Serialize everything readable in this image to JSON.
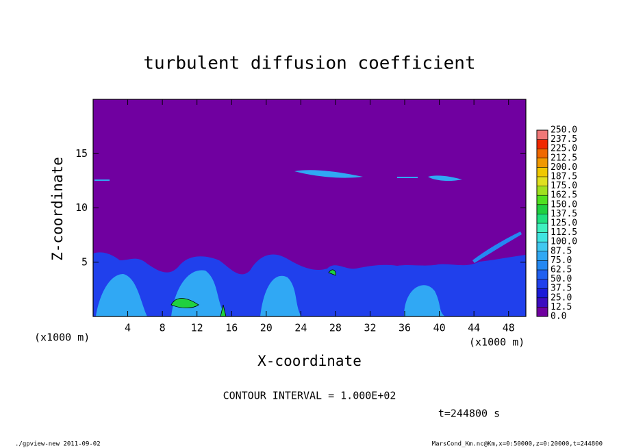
{
  "chart_data": {
    "type": "contour",
    "title": "turbulent diffusion coefficient",
    "xlabel": "X-coordinate",
    "ylabel": "Z-coordinate",
    "x_unit": "(x1000 m)",
    "y_unit": "(x1000 m)",
    "xlim": [
      0,
      50
    ],
    "ylim": [
      0,
      20
    ],
    "xticks": [
      4,
      8,
      12,
      16,
      20,
      24,
      28,
      32,
      36,
      40,
      44,
      48
    ],
    "yticks": [
      5,
      10,
      15
    ],
    "levels": [
      {
        "value": 0,
        "label": "0.0"
      },
      {
        "value": 12.5,
        "label": "12.5"
      },
      {
        "value": 25,
        "label": "25.0"
      },
      {
        "value": 37.5,
        "label": "37.5"
      },
      {
        "value": 50,
        "label": "50.0"
      },
      {
        "value": 62.5,
        "label": "62.5"
      },
      {
        "value": 75,
        "label": "75.0"
      },
      {
        "value": 87.5,
        "label": "87.5"
      },
      {
        "value": 100,
        "label": "100.0"
      },
      {
        "value": 112.5,
        "label": "112.5"
      },
      {
        "value": 125,
        "label": "125.0"
      },
      {
        "value": 137.5,
        "label": "137.5"
      },
      {
        "value": 150,
        "label": "150.0"
      },
      {
        "value": 162.5,
        "label": "162.5"
      },
      {
        "value": 175,
        "label": "175.0"
      },
      {
        "value": 187.5,
        "label": "187.5"
      },
      {
        "value": 200,
        "label": "200.0"
      },
      {
        "value": 212.5,
        "label": "212.5"
      },
      {
        "value": 225,
        "label": "225.0"
      },
      {
        "value": 237.5,
        "label": "237.5"
      },
      {
        "value": 250,
        "label": "250.0"
      }
    ],
    "level_colors": [
      "#7000a0",
      "#3c0cc0",
      "#1a1ad8",
      "#2040ec",
      "#2060f0",
      "#2488f2",
      "#30a8f4",
      "#40c8f0",
      "#40e4e0",
      "#40f0c0",
      "#20e080",
      "#20d040",
      "#50e020",
      "#a0e020",
      "#e0e020",
      "#f0c800",
      "#f09800",
      "#f06800",
      "#f02800",
      "#f07878"
    ],
    "annotations": {
      "contour_interval": "CONTOUR INTERVAL = 1.000E+02",
      "time": "t=244800 s",
      "footer_left": "./gpview-new  2011-09-02",
      "footer_right": "MarsCond_Km.nc@Km,x=0:50000,z=0:20000,t=244800"
    }
  }
}
